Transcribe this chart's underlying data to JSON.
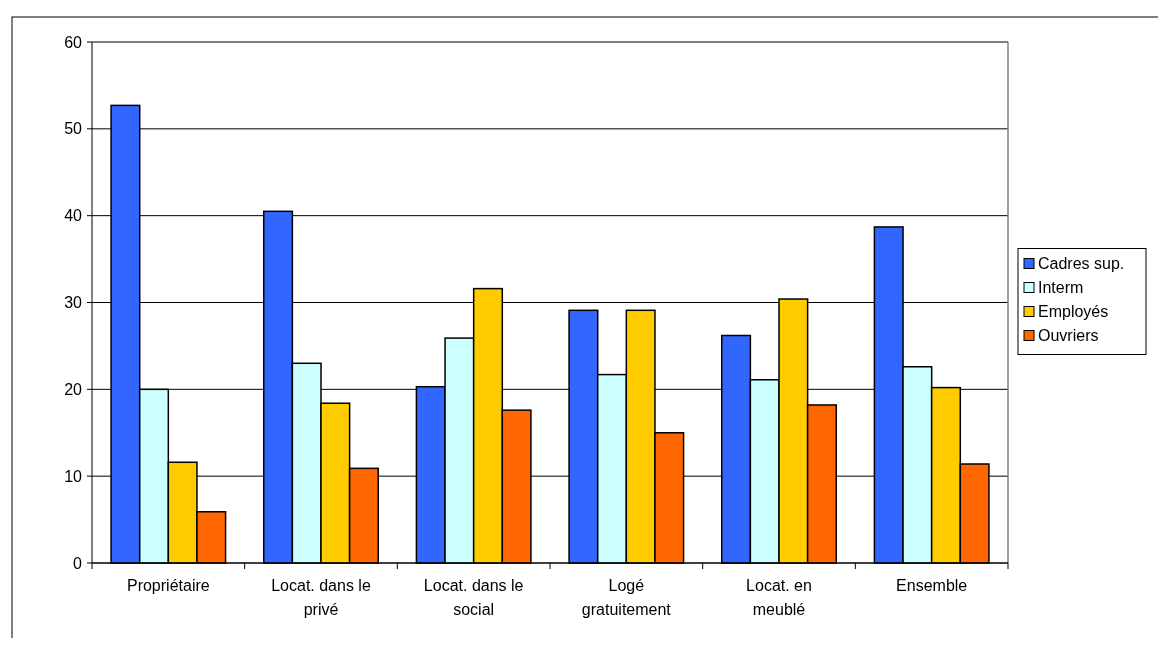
{
  "chart_data": {
    "type": "bar",
    "categories": [
      "Propriétaire",
      "Locat. dans le privé",
      "Locat. dans le social",
      "Logé gratuitement",
      "Locat. en meublé",
      "Ensemble"
    ],
    "series": [
      {
        "name": "Cadres sup.",
        "color": "#3366ff",
        "values": [
          52.7,
          40.5,
          20.3,
          29.1,
          26.2,
          38.7
        ]
      },
      {
        "name": "Interm",
        "color": "#ccffff",
        "values": [
          20.0,
          23.0,
          25.9,
          21.7,
          21.1,
          22.6
        ]
      },
      {
        "name": "Employés",
        "color": "#ffcc00",
        "values": [
          11.6,
          18.4,
          31.6,
          29.1,
          30.4,
          20.2
        ]
      },
      {
        "name": "Ouvriers",
        "color": "#ff6600",
        "values": [
          5.9,
          10.9,
          17.6,
          15.0,
          18.2,
          11.4
        ]
      }
    ],
    "ylim": [
      0,
      60
    ],
    "yticks": [
      0,
      10,
      20,
      30,
      40,
      50,
      60
    ],
    "grid": "y",
    "legend": "right"
  }
}
